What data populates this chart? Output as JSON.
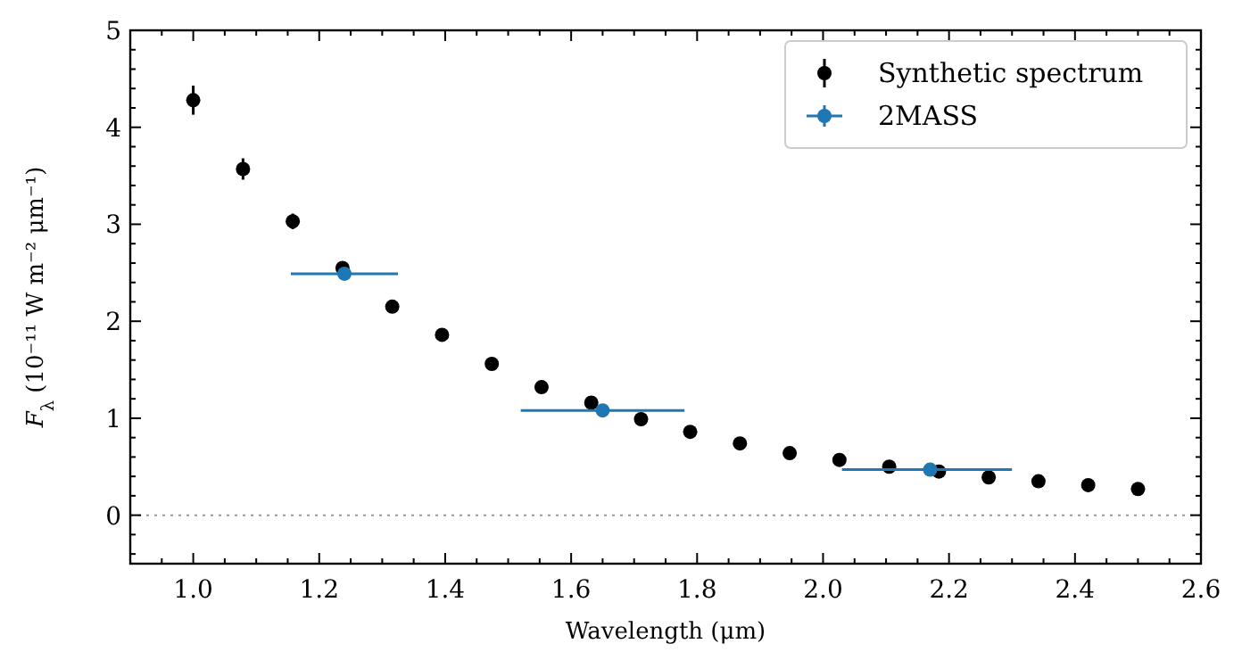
{
  "chart_data": {
    "type": "scatter",
    "xlabel": "Wavelength (μm)",
    "ylabel": "F$_{λ}$ (10⁻¹¹ W m⁻² μm⁻¹)",
    "xlim": [
      0.9,
      2.6
    ],
    "ylim": [
      -0.5,
      5
    ],
    "xticks": [
      {
        "value": 0.9,
        "label": null
      },
      {
        "value": 0.95,
        "label": null
      },
      {
        "value": 1.0,
        "label": "1.0"
      },
      {
        "value": 1.05,
        "label": null
      },
      {
        "value": 1.1,
        "label": null
      },
      {
        "value": 1.15,
        "label": null
      },
      {
        "value": 1.2,
        "label": "1.2"
      },
      {
        "value": 1.25,
        "label": null
      },
      {
        "value": 1.3,
        "label": null
      },
      {
        "value": 1.35,
        "label": null
      },
      {
        "value": 1.4,
        "label": "1.4"
      },
      {
        "value": 1.45,
        "label": null
      },
      {
        "value": 1.5,
        "label": null
      },
      {
        "value": 1.55,
        "label": null
      },
      {
        "value": 1.6,
        "label": "1.6"
      },
      {
        "value": 1.65,
        "label": null
      },
      {
        "value": 1.7,
        "label": null
      },
      {
        "value": 1.75,
        "label": null
      },
      {
        "value": 1.8,
        "label": "1.8"
      },
      {
        "value": 1.85,
        "label": null
      },
      {
        "value": 1.9,
        "label": null
      },
      {
        "value": 1.95,
        "label": null
      },
      {
        "value": 2.0,
        "label": "2.0"
      },
      {
        "value": 2.05,
        "label": null
      },
      {
        "value": 2.1,
        "label": null
      },
      {
        "value": 2.15,
        "label": null
      },
      {
        "value": 2.2,
        "label": "2.2"
      },
      {
        "value": 2.25,
        "label": null
      },
      {
        "value": 2.3,
        "label": null
      },
      {
        "value": 2.35,
        "label": null
      },
      {
        "value": 2.4,
        "label": "2.4"
      },
      {
        "value": 2.45,
        "label": null
      },
      {
        "value": 2.5,
        "label": null
      },
      {
        "value": 2.55,
        "label": null
      },
      {
        "value": 2.6,
        "label": "2.6"
      }
    ],
    "yticks": [
      {
        "value": -0.4,
        "label": null
      },
      {
        "value": -0.2,
        "label": null
      },
      0,
      {
        "value": 0.2,
        "label": null
      },
      {
        "value": 0.4,
        "label": null
      },
      {
        "value": 0.6,
        "label": null
      },
      {
        "value": 0.8,
        "label": null
      },
      1,
      {
        "value": 1.2,
        "label": null
      },
      {
        "value": 1.4,
        "label": null
      },
      {
        "value": 1.6,
        "label": null
      },
      {
        "value": 1.8,
        "label": null
      },
      2,
      {
        "value": 2.2,
        "label": null
      },
      {
        "value": 2.4,
        "label": null
      },
      {
        "value": 2.6,
        "label": null
      },
      {
        "value": 2.8,
        "label": null
      },
      3,
      {
        "value": 3.2,
        "label": null
      },
      {
        "value": 3.4,
        "label": null
      },
      {
        "value": 3.6,
        "label": null
      },
      {
        "value": 3.8,
        "label": null
      },
      4,
      {
        "value": 4.2,
        "label": null
      },
      {
        "value": 4.4,
        "label": null
      },
      {
        "value": 4.6,
        "label": null
      },
      {
        "value": 4.8,
        "label": null
      },
      5
    ],
    "marker": "circle",
    "legend": "top right",
    "ref_lines": [
      {
        "axis": "y",
        "value": 0,
        "color": "#999999",
        "line_style": "dotted"
      }
    ],
    "series": [
      {
        "name": "Synthetic spectrum",
        "color": "#000000",
        "x": [
          1.0,
          1.079,
          1.158,
          1.237,
          1.316,
          1.395,
          1.474,
          1.553,
          1.632,
          1.711,
          1.789,
          1.868,
          1.947,
          2.026,
          2.105,
          2.184,
          2.263,
          2.342,
          2.421,
          2.5
        ],
        "values": [
          4.28,
          3.57,
          3.03,
          2.55,
          2.15,
          1.86,
          1.56,
          1.32,
          1.16,
          0.99,
          0.86,
          0.74,
          0.64,
          0.57,
          0.5,
          0.45,
          0.39,
          0.35,
          0.31,
          0.27
        ],
        "errors": [
          0.15,
          0.11,
          0.08,
          0.06,
          null,
          null,
          null,
          null,
          null,
          null,
          null,
          null,
          null,
          null,
          null,
          null,
          null,
          null,
          null,
          null
        ]
      },
      {
        "name": "2MASS",
        "color": "#1f77b4",
        "x": [
          1.24,
          1.65,
          2.17
        ],
        "values": [
          2.49,
          1.08,
          0.47
        ],
        "xerrors": [
          [
            1.155,
            1.325
          ],
          [
            1.52,
            1.78
          ],
          [
            2.03,
            2.3
          ]
        ]
      }
    ]
  }
}
